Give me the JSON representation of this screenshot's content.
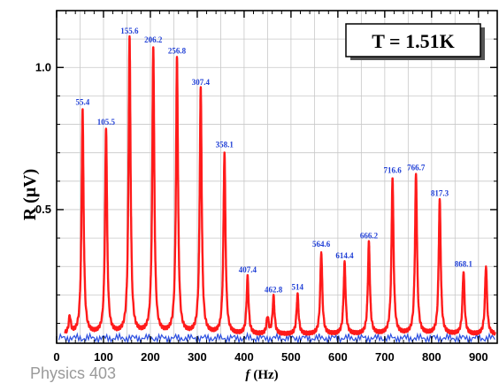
{
  "footer": {
    "text": "Physics 403"
  },
  "chart_data": {
    "type": "line",
    "annotation": "T = 1.51K",
    "xlabel_italic": "f",
    "xlabel_unit": "(Hz)",
    "ylabel": "R (μV)",
    "xlim": [
      0,
      940
    ],
    "ylim": [
      0.03,
      1.2
    ],
    "xticks": [
      0,
      100,
      200,
      300,
      400,
      500,
      600,
      700,
      800,
      900
    ],
    "yticks": [
      0.5,
      1.0
    ],
    "ytick_labels": [
      "0.5",
      "1.0"
    ],
    "grid": true,
    "colors": {
      "line": "#ff1a1a",
      "peak_label": "#1f3fd6",
      "baseline": "#2c4fe0"
    },
    "peaks": [
      {
        "x": 55.4,
        "y": 0.85,
        "label": "55.4"
      },
      {
        "x": 105.5,
        "y": 0.78,
        "label": "105.5"
      },
      {
        "x": 155.6,
        "y": 1.1,
        "label": "155.6"
      },
      {
        "x": 206.2,
        "y": 1.07,
        "label": "206.2"
      },
      {
        "x": 256.8,
        "y": 1.03,
        "label": "256.8"
      },
      {
        "x": 307.4,
        "y": 0.92,
        "label": "307.4"
      },
      {
        "x": 358.1,
        "y": 0.7,
        "label": "358.1"
      },
      {
        "x": 407.4,
        "y": 0.26,
        "label": "407.4"
      },
      {
        "x": 462.8,
        "y": 0.19,
        "label": "462.8"
      },
      {
        "x": 514,
        "y": 0.2,
        "label": "514"
      },
      {
        "x": 564.6,
        "y": 0.35,
        "label": "564.6"
      },
      {
        "x": 614.4,
        "y": 0.31,
        "label": "614.4"
      },
      {
        "x": 666.2,
        "y": 0.38,
        "label": "666.2"
      },
      {
        "x": 716.6,
        "y": 0.61,
        "label": "716.6"
      },
      {
        "x": 766.7,
        "y": 0.62,
        "label": "766.7"
      },
      {
        "x": 817.3,
        "y": 0.53,
        "label": "817.3"
      },
      {
        "x": 868.1,
        "y": 0.28,
        "label": "868.1"
      },
      {
        "x": 916,
        "y": 0.3,
        "label": ""
      }
    ],
    "minor_peaks": [
      {
        "x": 28,
        "y": 0.12
      },
      {
        "x": 450,
        "y": 0.12
      }
    ],
    "baseline": 0.06
  }
}
